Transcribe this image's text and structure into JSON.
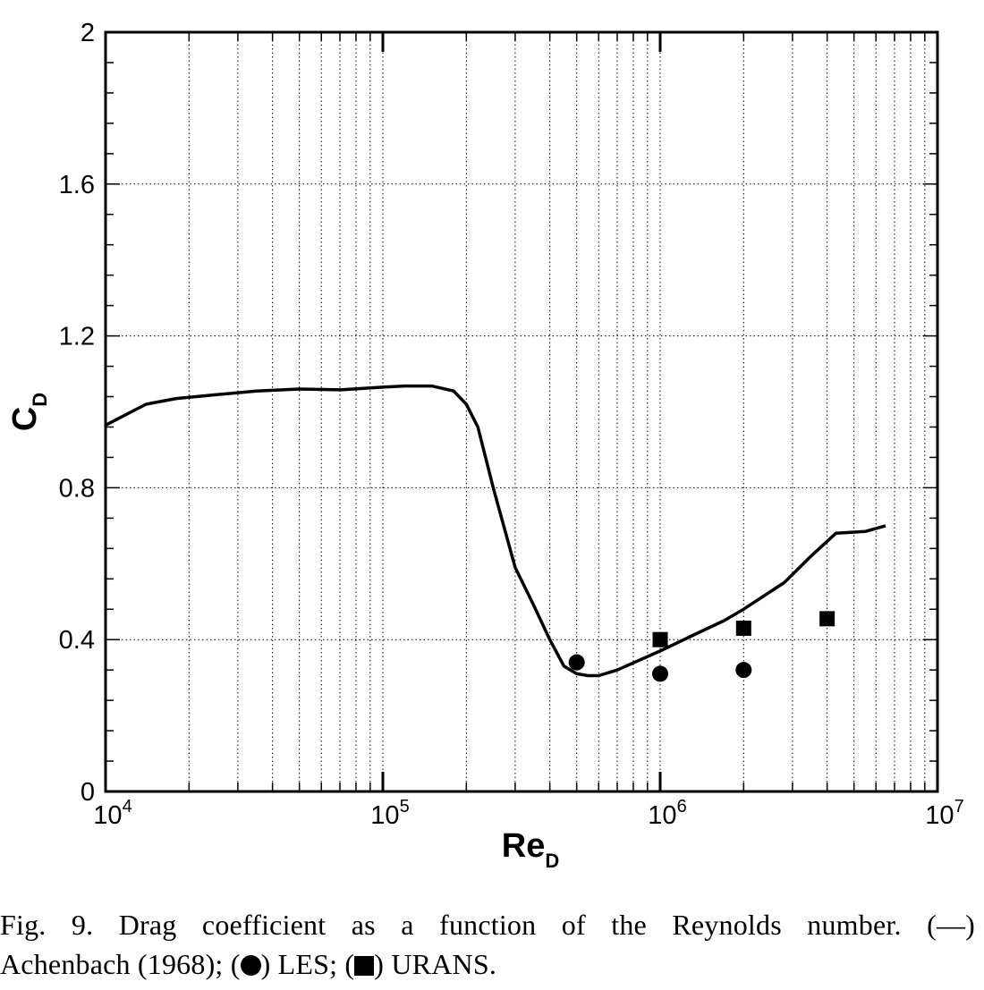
{
  "chart_data": {
    "type": "line",
    "xscale": "log",
    "xlim": [
      10000,
      10000000
    ],
    "ylim": [
      0,
      2
    ],
    "x_ticks": [
      {
        "value": 10000,
        "base": "10",
        "exp": "4"
      },
      {
        "value": 100000,
        "base": "10",
        "exp": "5"
      },
      {
        "value": 1000000,
        "base": "10",
        "exp": "6"
      },
      {
        "value": 10000000,
        "base": "10",
        "exp": "7"
      }
    ],
    "y_ticks": [
      {
        "value": 0,
        "label": "0"
      },
      {
        "value": 0.4,
        "label": "0.4"
      },
      {
        "value": 0.8,
        "label": "0.8"
      },
      {
        "value": 1.2,
        "label": "1.2"
      },
      {
        "value": 1.6,
        "label": "1.6"
      },
      {
        "value": 2,
        "label": "2"
      }
    ],
    "xlabel": {
      "main": "Re",
      "sub": "D"
    },
    "ylabel": {
      "main": "C",
      "sub": "D"
    },
    "grid": true,
    "series": [
      {
        "type": "line",
        "style": "solid",
        "color": "#000000",
        "x": [
          10000,
          14000,
          18000,
          25000,
          35000,
          50000,
          70000,
          100000,
          120000,
          150000,
          180000,
          200000,
          220000,
          250000,
          300000,
          350000,
          400000,
          450000,
          500000,
          550000,
          600000,
          700000,
          1000000,
          1300000,
          1700000,
          2000000,
          2800000,
          3500000,
          4300000,
          5500000,
          6500000
        ],
        "y": [
          0.965,
          1.02,
          1.035,
          1.045,
          1.055,
          1.06,
          1.058,
          1.065,
          1.068,
          1.068,
          1.055,
          1.02,
          0.96,
          0.8,
          0.59,
          0.49,
          0.4,
          0.33,
          0.31,
          0.305,
          0.305,
          0.32,
          0.37,
          0.41,
          0.45,
          0.48,
          0.55,
          0.62,
          0.68,
          0.685,
          0.7
        ]
      },
      {
        "type": "scatter",
        "marker": "circle",
        "color": "#000000",
        "x": [
          500000,
          1000000,
          2000000
        ],
        "y": [
          0.34,
          0.31,
          0.32
        ]
      },
      {
        "type": "scatter",
        "marker": "square",
        "color": "#000000",
        "x": [
          1000000,
          2000000,
          4000000
        ],
        "y": [
          0.4,
          0.43,
          0.455
        ]
      }
    ]
  },
  "caption": {
    "line1": "Fig. 9. Drag coefficient as a function of the Reynolds number. (—)",
    "line2_a": "Achenbach (1968); (",
    "line2_b": ") LES; (",
    "line2_c": ") URANS."
  }
}
